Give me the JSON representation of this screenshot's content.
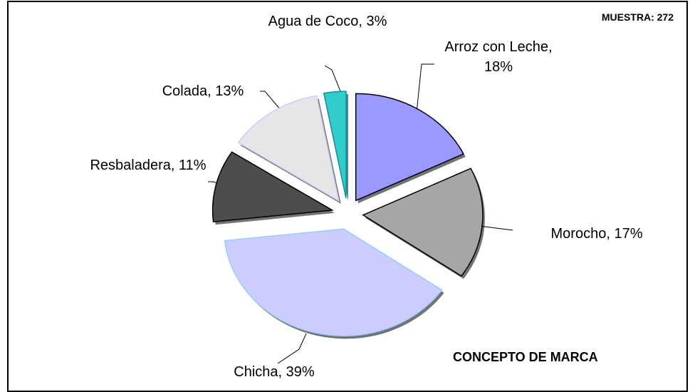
{
  "chart_data": {
    "type": "pie",
    "title": "CONCEPTO DE MARCA",
    "annotation": "MUESTRA: 272",
    "labels": [
      "Arroz con Leche, 18%",
      "Morocho, 17%",
      "Chicha, 39%",
      "Resbaladera, 11%",
      "Colada, 13%",
      "Agua de Coco, 3%"
    ],
    "values": [
      18,
      17,
      39,
      11,
      13,
      3
    ],
    "colors": [
      "#9999ff",
      "#a6a6a6",
      "#ccccff",
      "#4d4d4d",
      "#e6e6e6",
      "#33cccc"
    ],
    "strokes": [
      "#000000",
      "#000000",
      "#99ccff",
      "#000000",
      "#ccccff",
      "#009999"
    ]
  }
}
